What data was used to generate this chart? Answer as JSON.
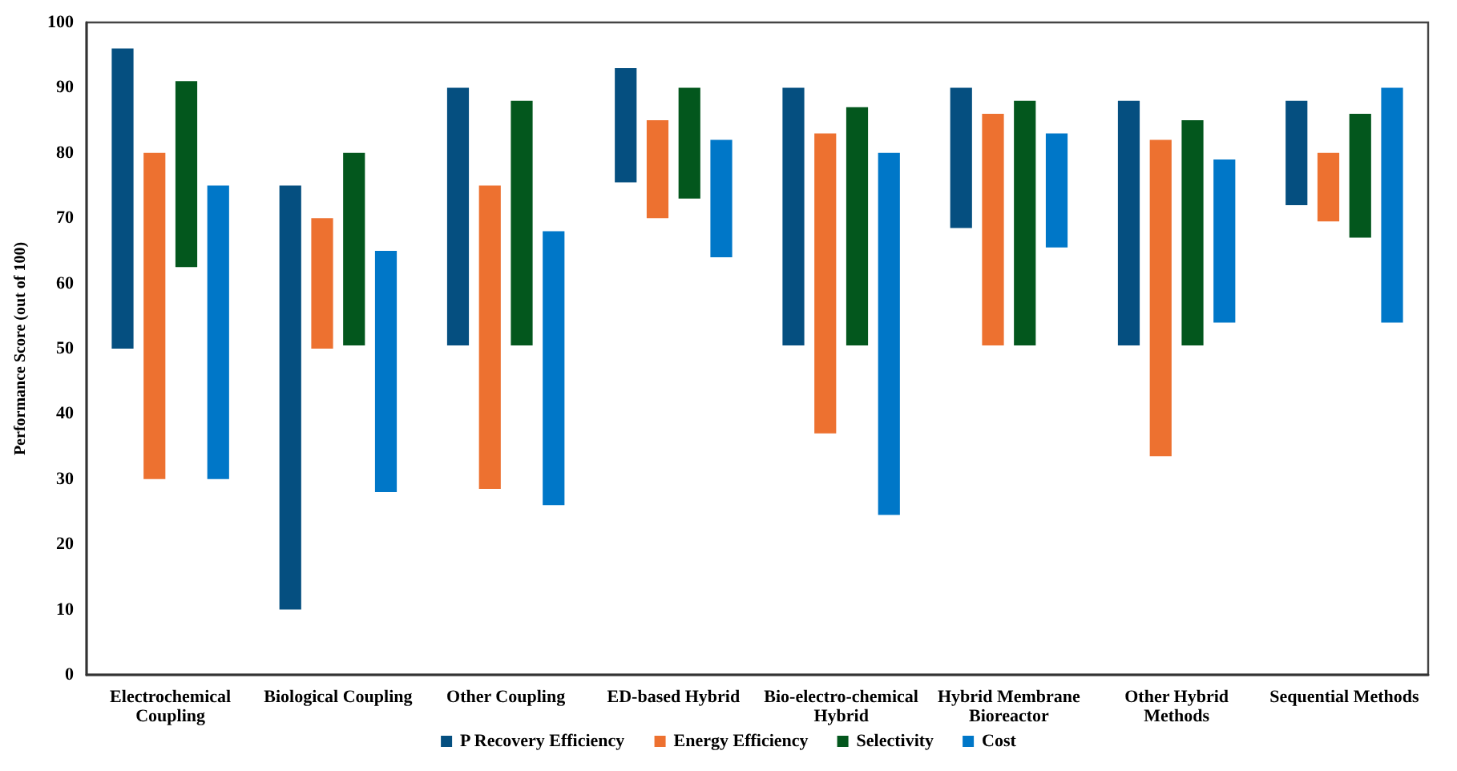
{
  "chart_data": {
    "type": "bar",
    "ylabel": "Performance Score (out of 100)",
    "categories": [
      "Electrochemical\nCoupling",
      "Biological Coupling",
      "Other Coupling",
      "ED-based Hybrid",
      "Bio-electro-chemical\nHybrid",
      "Hybrid Membrane\nBioreactor",
      "Other Hybrid\nMethods",
      "Sequential Methods"
    ],
    "series": [
      {
        "name": "P Recovery Efficiency",
        "color": "#054f80",
        "base": [
          50,
          10,
          50.5,
          75.5,
          50.5,
          68.5,
          50.5,
          72
        ],
        "values": [
          46,
          65,
          39.5,
          17.5,
          39.5,
          21.5,
          37.5,
          16
        ]
      },
      {
        "name": "Energy Efficiency",
        "color": "#ed7130",
        "base": [
          30,
          50,
          28.5,
          70,
          37,
          50.5,
          33.5,
          69.5
        ],
        "values": [
          50,
          20,
          46.5,
          15,
          46,
          35.5,
          48.5,
          10.5
        ]
      },
      {
        "name": "Selectivity",
        "color": "#03571d",
        "base": [
          62.5,
          50.5,
          50.5,
          73,
          50.5,
          50.5,
          50.5,
          67
        ],
        "values": [
          28.5,
          29.5,
          37.5,
          17,
          36.5,
          37.5,
          34.5,
          19
        ]
      },
      {
        "name": "Cost",
        "color": "#0077c8",
        "base": [
          30,
          28,
          26,
          64,
          24.5,
          65.5,
          54,
          54
        ],
        "values": [
          45,
          37,
          42,
          18,
          55.5,
          17.5,
          25,
          36
        ]
      }
    ],
    "ylim": [
      0,
      100
    ],
    "yticks": [
      0,
      10,
      20,
      30,
      40,
      50,
      60,
      70,
      80,
      90,
      100
    ],
    "legend": "bottom"
  }
}
